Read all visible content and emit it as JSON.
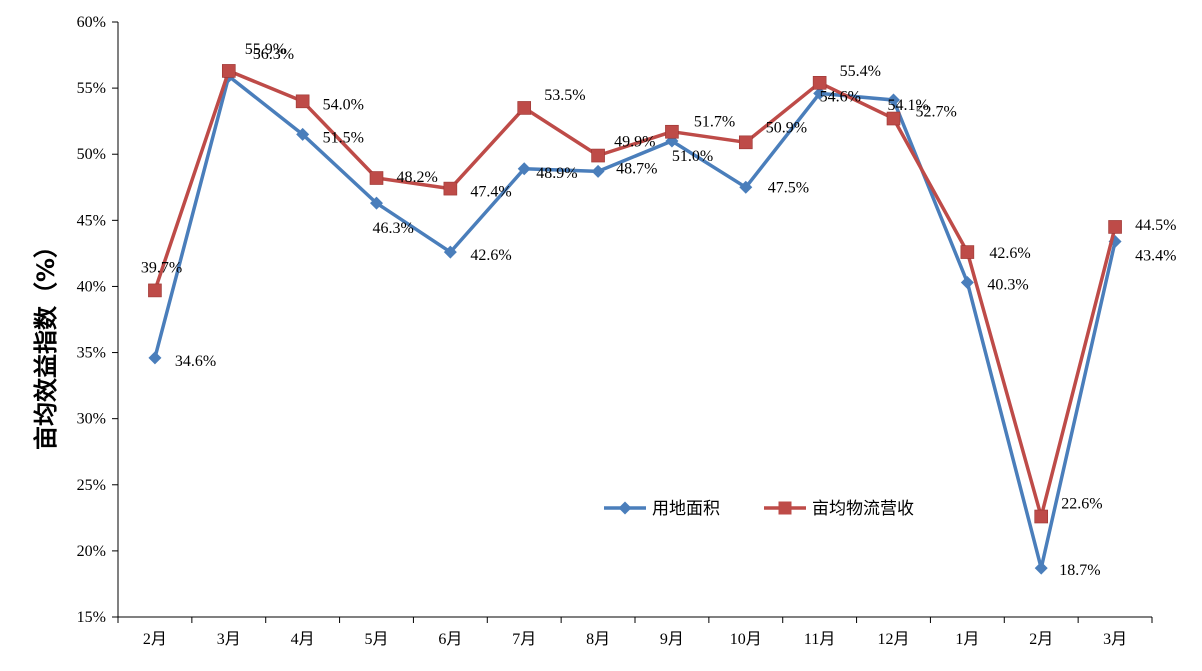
{
  "chart_data": {
    "type": "line",
    "categories": [
      "2月",
      "3月",
      "4月",
      "5月",
      "6月",
      "7月",
      "8月",
      "9月",
      "10月",
      "11月",
      "12月",
      "1月",
      "2月",
      "3月"
    ],
    "series": [
      {
        "name": "用地面积",
        "color": "#4A7EBB",
        "marker": "diamond",
        "values": [
          34.6,
          55.9,
          51.5,
          46.3,
          42.6,
          48.9,
          48.7,
          51.0,
          47.5,
          54.6,
          54.1,
          40.3,
          18.7,
          43.4
        ],
        "labels": [
          "34.6%",
          "55.9%",
          "51.5%",
          "46.3%",
          "42.6%",
          "48.9%",
          "48.7%",
          "51.0%",
          "47.5%",
          "54.6%",
          "54.1%",
          "40.3%",
          "18.7%",
          "43.4%"
        ]
      },
      {
        "name": "亩均物流营收",
        "color": "#BE4B48",
        "marker": "square",
        "values": [
          39.7,
          56.3,
          54.0,
          48.2,
          47.4,
          53.5,
          49.9,
          51.7,
          50.9,
          55.4,
          52.7,
          42.6,
          22.6,
          44.5
        ],
        "labels": [
          "39.7%",
          "56.3%",
          "54.0%",
          "48.2%",
          "47.4%",
          "53.5%",
          "49.9%",
          "51.7%",
          "50.9%",
          "55.4%",
          "52.7%",
          "42.6%",
          "22.6%",
          "44.5%"
        ]
      }
    ],
    "ylabel": "亩均效益指数（%）",
    "xlabel": "",
    "ylim": [
      15,
      60
    ],
    "yticks": [
      15,
      20,
      25,
      30,
      35,
      40,
      45,
      50,
      55,
      60
    ],
    "ytick_labels": [
      "15%",
      "20%",
      "25%",
      "30%",
      "35%",
      "40%",
      "45%",
      "50%",
      "55%",
      "60%"
    ],
    "grid": false,
    "legend_position": "bottom-center-inside"
  }
}
